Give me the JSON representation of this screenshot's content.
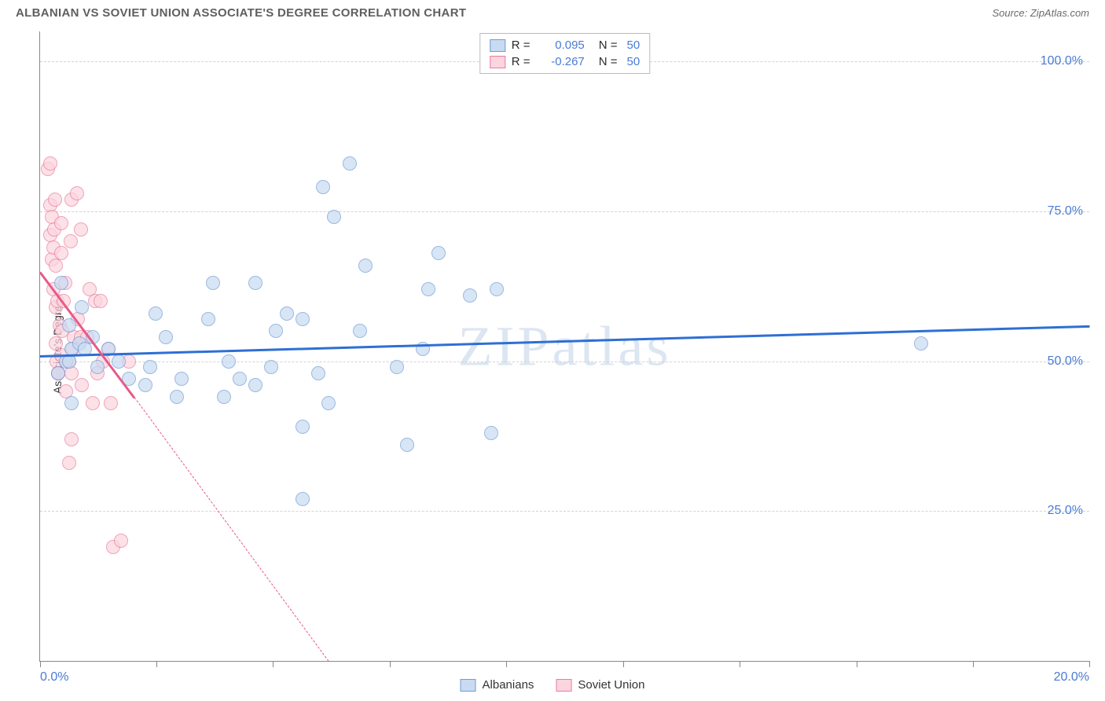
{
  "header": {
    "title": "ALBANIAN VS SOVIET UNION ASSOCIATE'S DEGREE CORRELATION CHART",
    "source_label": "Source: ZipAtlas.com"
  },
  "chart": {
    "type": "scatter",
    "watermark": "ZIPatlas",
    "yaxis_title": "Associate's Degree",
    "background_color": "#ffffff",
    "grid_color": "#d3d3d3",
    "axis_color": "#888888",
    "xlim": [
      0,
      20
    ],
    "ylim": [
      0,
      105
    ],
    "xtick_positions": [
      0,
      2.22,
      4.44,
      6.67,
      8.89,
      11.11,
      13.33,
      15.56,
      17.78,
      20
    ],
    "xtick_labels": {
      "0": "0.0%",
      "20": "20.0%"
    },
    "ytick_positions": [
      25,
      50,
      75,
      100
    ],
    "ytick_labels": [
      "25.0%",
      "50.0%",
      "75.0%",
      "100.0%"
    ],
    "ytick_color": "#4a7bd4",
    "xtick_color": "#4a7bd4",
    "series": {
      "albanians": {
        "label": "Albanians",
        "marker_fill": "#c8dbf2",
        "marker_stroke": "#6f9cd6",
        "trend_color": "#2e6fd4",
        "trend_start": {
          "x": 0,
          "y": 51
        },
        "trend_end": {
          "x": 20,
          "y": 56
        },
        "r_value": "0.095",
        "n_value": "50",
        "points": [
          {
            "x": 0.35,
            "y": 48
          },
          {
            "x": 0.4,
            "y": 63
          },
          {
            "x": 0.5,
            "y": 50
          },
          {
            "x": 0.55,
            "y": 50
          },
          {
            "x": 0.55,
            "y": 56
          },
          {
            "x": 0.6,
            "y": 52
          },
          {
            "x": 0.6,
            "y": 43
          },
          {
            "x": 0.75,
            "y": 53
          },
          {
            "x": 0.8,
            "y": 59
          },
          {
            "x": 0.85,
            "y": 52
          },
          {
            "x": 1.0,
            "y": 54
          },
          {
            "x": 1.1,
            "y": 49
          },
          {
            "x": 1.3,
            "y": 52
          },
          {
            "x": 1.5,
            "y": 50
          },
          {
            "x": 1.7,
            "y": 47
          },
          {
            "x": 2.0,
            "y": 46
          },
          {
            "x": 2.1,
            "y": 49
          },
          {
            "x": 2.2,
            "y": 58
          },
          {
            "x": 2.4,
            "y": 54
          },
          {
            "x": 2.6,
            "y": 44
          },
          {
            "x": 2.7,
            "y": 47
          },
          {
            "x": 3.2,
            "y": 57
          },
          {
            "x": 3.3,
            "y": 63
          },
          {
            "x": 3.5,
            "y": 44
          },
          {
            "x": 3.6,
            "y": 50
          },
          {
            "x": 3.8,
            "y": 47
          },
          {
            "x": 4.1,
            "y": 46
          },
          {
            "x": 4.1,
            "y": 63
          },
          {
            "x": 4.4,
            "y": 49
          },
          {
            "x": 4.5,
            "y": 55
          },
          {
            "x": 4.7,
            "y": 58
          },
          {
            "x": 5.0,
            "y": 57
          },
          {
            "x": 5.0,
            "y": 39
          },
          {
            "x": 5.0,
            "y": 27
          },
          {
            "x": 5.3,
            "y": 48
          },
          {
            "x": 5.4,
            "y": 79
          },
          {
            "x": 5.5,
            "y": 43
          },
          {
            "x": 5.6,
            "y": 74
          },
          {
            "x": 5.9,
            "y": 83
          },
          {
            "x": 6.1,
            "y": 55
          },
          {
            "x": 6.2,
            "y": 66
          },
          {
            "x": 6.8,
            "y": 49
          },
          {
            "x": 7.0,
            "y": 36
          },
          {
            "x": 7.3,
            "y": 52
          },
          {
            "x": 7.4,
            "y": 62
          },
          {
            "x": 7.6,
            "y": 68
          },
          {
            "x": 8.2,
            "y": 61
          },
          {
            "x": 8.6,
            "y": 38
          },
          {
            "x": 8.7,
            "y": 62
          },
          {
            "x": 16.8,
            "y": 53
          }
        ]
      },
      "soviet": {
        "label": "Soviet Union",
        "marker_fill": "#fcd5de",
        "marker_stroke": "#e97d9f",
        "trend_color": "#e85a88",
        "trend_start": {
          "x": 0,
          "y": 65
        },
        "trend_end_solid": {
          "x": 1.8,
          "y": 44
        },
        "trend_end_dash": {
          "x": 5.5,
          "y": 0
        },
        "r_value": "-0.267",
        "n_value": "50",
        "points": [
          {
            "x": 0.15,
            "y": 82
          },
          {
            "x": 0.2,
            "y": 83
          },
          {
            "x": 0.2,
            "y": 76
          },
          {
            "x": 0.2,
            "y": 71
          },
          {
            "x": 0.22,
            "y": 67
          },
          {
            "x": 0.22,
            "y": 74
          },
          {
            "x": 0.25,
            "y": 69
          },
          {
            "x": 0.25,
            "y": 62
          },
          {
            "x": 0.27,
            "y": 72
          },
          {
            "x": 0.28,
            "y": 77
          },
          {
            "x": 0.3,
            "y": 66
          },
          {
            "x": 0.3,
            "y": 59
          },
          {
            "x": 0.3,
            "y": 53
          },
          {
            "x": 0.32,
            "y": 50
          },
          {
            "x": 0.33,
            "y": 60
          },
          {
            "x": 0.35,
            "y": 48
          },
          {
            "x": 0.35,
            "y": 48
          },
          {
            "x": 0.38,
            "y": 56
          },
          {
            "x": 0.4,
            "y": 73
          },
          {
            "x": 0.4,
            "y": 68
          },
          {
            "x": 0.4,
            "y": 51
          },
          {
            "x": 0.42,
            "y": 55
          },
          {
            "x": 0.45,
            "y": 60
          },
          {
            "x": 0.48,
            "y": 63
          },
          {
            "x": 0.5,
            "y": 45
          },
          {
            "x": 0.55,
            "y": 50
          },
          {
            "x": 0.55,
            "y": 33
          },
          {
            "x": 0.58,
            "y": 70
          },
          {
            "x": 0.6,
            "y": 77
          },
          {
            "x": 0.6,
            "y": 37
          },
          {
            "x": 0.6,
            "y": 48
          },
          {
            "x": 0.62,
            "y": 52
          },
          {
            "x": 0.65,
            "y": 54
          },
          {
            "x": 0.7,
            "y": 78
          },
          {
            "x": 0.72,
            "y": 57
          },
          {
            "x": 0.78,
            "y": 54
          },
          {
            "x": 0.78,
            "y": 72
          },
          {
            "x": 0.8,
            "y": 46
          },
          {
            "x": 0.9,
            "y": 54
          },
          {
            "x": 0.95,
            "y": 62
          },
          {
            "x": 1.0,
            "y": 43
          },
          {
            "x": 1.05,
            "y": 60
          },
          {
            "x": 1.1,
            "y": 48
          },
          {
            "x": 1.15,
            "y": 60
          },
          {
            "x": 1.2,
            "y": 50
          },
          {
            "x": 1.3,
            "y": 52
          },
          {
            "x": 1.35,
            "y": 43
          },
          {
            "x": 1.4,
            "y": 19
          },
          {
            "x": 1.55,
            "y": 20
          },
          {
            "x": 1.7,
            "y": 50
          }
        ]
      }
    },
    "legend_r_labels": {
      "r": "R  =",
      "n": "N  ="
    }
  }
}
